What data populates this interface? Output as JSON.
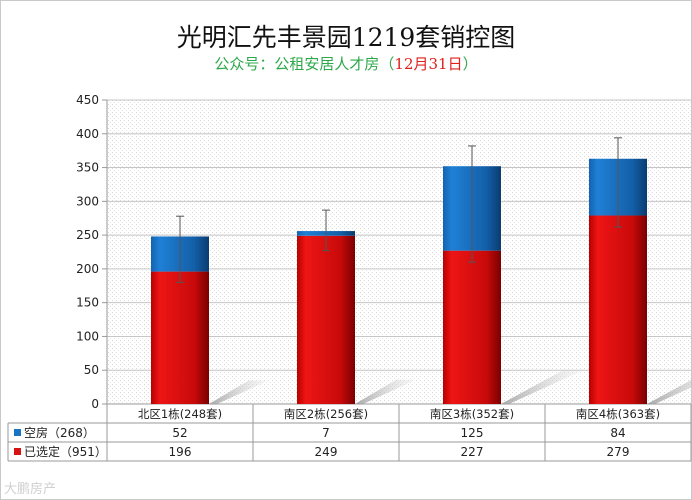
{
  "header": {
    "title": "光明汇先丰景园1219套销控图",
    "subtitle_prefix": "公众号：公租安居人才房（",
    "subtitle_date": "12月31日",
    "subtitle_suffix": "）"
  },
  "watermark": "大鹏房产",
  "colors": {
    "vacant": "#1a74c4",
    "selected": "#d81313",
    "title": "#111111",
    "subtitle": "#2ea84a",
    "date": "#e0201b"
  },
  "chart_data": {
    "type": "bar",
    "stacked": true,
    "categories": [
      "北区1栋(248套)",
      "南区2栋(256套)",
      "南区3栋(352套)",
      "南区4栋(363套)"
    ],
    "series": [
      {
        "name": "已选定",
        "legend_label": "已选定（951）",
        "color": "#d81313",
        "values": [
          196,
          249,
          227,
          279
        ]
      },
      {
        "name": "空房",
        "legend_label": "空房（268）",
        "color": "#1a74c4",
        "values": [
          52,
          7,
          125,
          84
        ]
      }
    ],
    "yticks": [
      "0",
      "50",
      "100",
      "150",
      "200",
      "250",
      "300",
      "350",
      "400",
      "450"
    ],
    "ylim": [
      0,
      450
    ],
    "error_bars": [
      {
        "category": "北区1栋(248套)",
        "center": 229,
        "plus": 49,
        "minus": 49
      },
      {
        "category": "南区2栋(256套)",
        "center": 257,
        "plus": 30,
        "minus": 30
      },
      {
        "category": "南区3栋(352套)",
        "center": 296,
        "plus": 86,
        "minus": 86
      },
      {
        "category": "南区4栋(363套)",
        "center": 328,
        "plus": 66,
        "minus": 66
      }
    ],
    "data_table": {
      "rows": [
        {
          "label": "空房（268）",
          "values": [
            "52",
            "7",
            "125",
            "84"
          ]
        },
        {
          "label": "已选定（951）",
          "values": [
            "196",
            "249",
            "227",
            "279"
          ]
        }
      ]
    },
    "grid": true,
    "legend_placement": "data table rows"
  }
}
